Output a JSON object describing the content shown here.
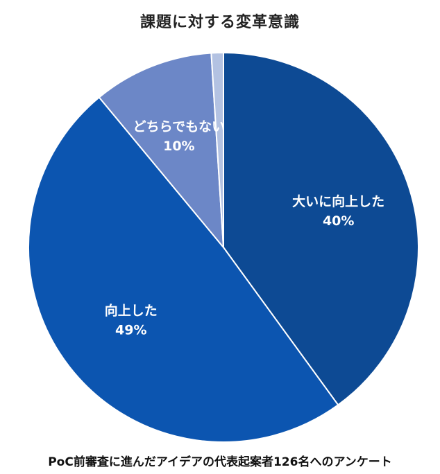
{
  "title": "課題に対する変革意識",
  "footnote": "PoC前審査に進んだアイデアの代表起案者126名へのアンケート",
  "chart_data": {
    "type": "pie",
    "start_angle": "12 o'clock",
    "direction": "clockwise",
    "slices": [
      {
        "label": "大いに向上した",
        "value_label": "40%",
        "value": 40,
        "color": "#0d4a94"
      },
      {
        "label": "向上した",
        "value_label": "49%",
        "value": 49,
        "color": "#0c55b0"
      },
      {
        "label": "どちらでもない",
        "value_label": "10%",
        "value": 10,
        "color": "#6c87c7"
      },
      {
        "label": "",
        "value_label": "",
        "value": 1,
        "color": "#b3c2e2"
      }
    ]
  }
}
